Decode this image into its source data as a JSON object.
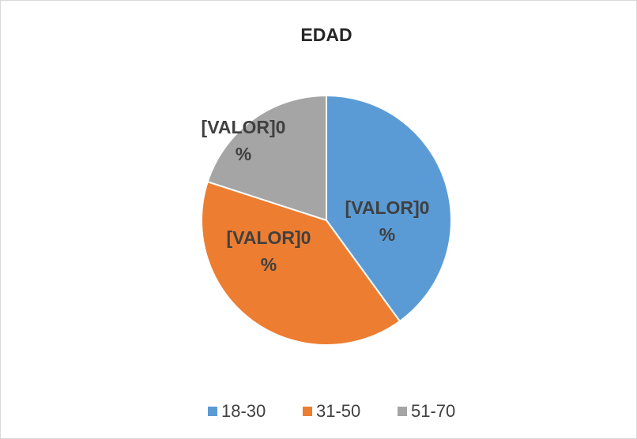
{
  "chart_data": {
    "type": "pie",
    "title": "EDAD",
    "categories": [
      "18-30",
      "31-50",
      "51-70"
    ],
    "values": [
      40,
      40,
      20
    ],
    "value_labels": [
      "[VALOR]0 %",
      "[VALOR]0 %",
      "[VALOR]0 %"
    ],
    "colors": [
      "#5b9bd5",
      "#ed7d31",
      "#a5a5a5"
    ],
    "legend": "bottom"
  }
}
